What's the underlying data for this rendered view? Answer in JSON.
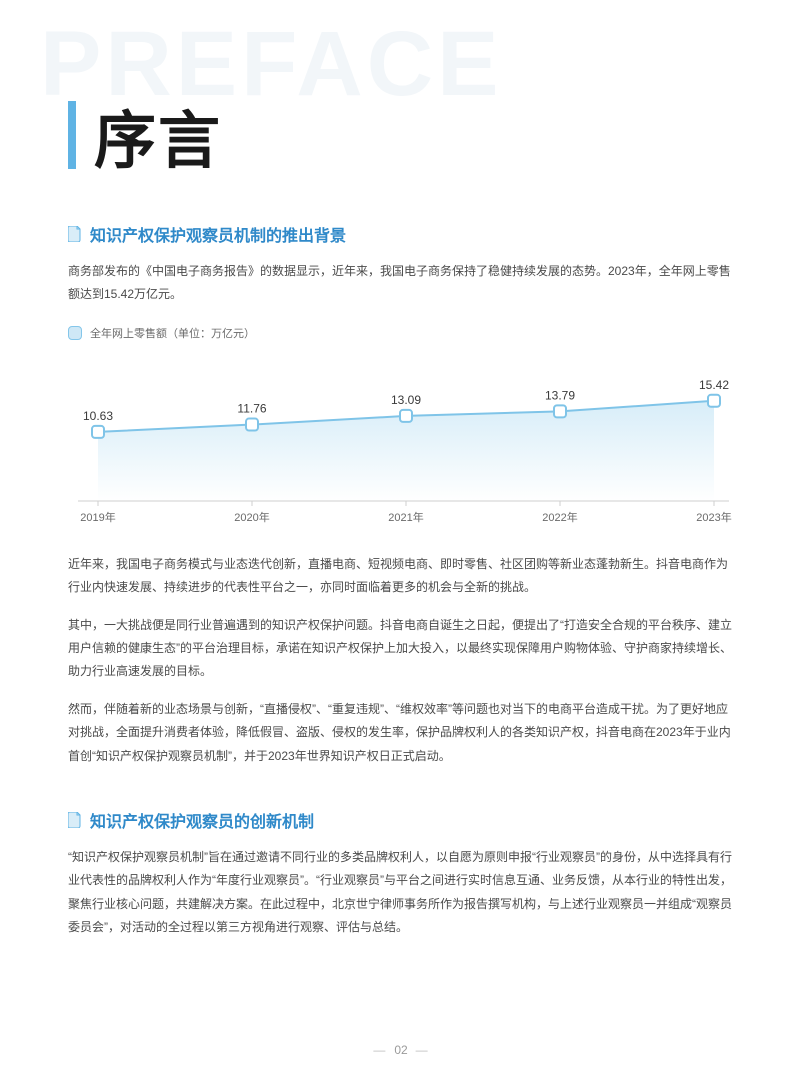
{
  "watermark": "PREFACE",
  "heading": "序言",
  "section1": {
    "title": "知识产权保护观察员机制的推出背景",
    "intro": "商务部发布的《中国电子商务报告》的数据显示，近年来，我国电子商务保持了稳健持续发展的态势。2023年，全年网上零售额达到15.42万亿元。",
    "legend": "全年网上零售额（单位：万亿元）",
    "chart": {
      "type": "area-line",
      "categories": [
        "2019年",
        "2020年",
        "2021年",
        "2022年",
        "2023年"
      ],
      "values": [
        10.63,
        11.76,
        13.09,
        13.79,
        15.42
      ],
      "value_labels": [
        "10.63",
        "11.76",
        "13.09",
        "13.79",
        "15.42"
      ],
      "line_color": "#7fc4e8",
      "area_top_color": "#d7edf8",
      "area_bottom_color": "#ffffff",
      "marker_fill": "#ffffff",
      "marker_stroke": "#7fc4e8",
      "marker_size": 6,
      "axis_color": "#cfcfcf",
      "label_color": "#3a3a3a",
      "cat_label_color": "#6a6a6a",
      "ylim": [
        0,
        20
      ],
      "label_fontsize": 12,
      "cat_fontsize": 11,
      "background_color": "#ffffff"
    },
    "p2": "近年来，我国电子商务模式与业态迭代创新，直播电商、短视频电商、即时零售、社区团购等新业态蓬勃新生。抖音电商作为行业内快速发展、持续进步的代表性平台之一，亦同时面临着更多的机会与全新的挑战。",
    "p3": "其中，一大挑战便是同行业普遍遇到的知识产权保护问题。抖音电商自诞生之日起，便提出了“打造安全合规的平台秩序、建立用户信赖的健康生态”的平台治理目标，承诺在知识产权保护上加大投入，以最终实现保障用户购物体验、守护商家持续增长、助力行业高速发展的目标。",
    "p4": "然而，伴随着新的业态场景与创新，“直播侵权”、“重复违规”、“维权效率”等问题也对当下的电商平台造成干扰。为了更好地应对挑战，全面提升消费者体验，降低假冒、盗版、侵权的发生率，保护品牌权利人的各类知识产权，抖音电商在2023年于业内首创“知识产权保护观察员机制”，并于2023年世界知识产权日正式启动。"
  },
  "section2": {
    "title": "知识产权保护观察员的创新机制",
    "p1": "“知识产权保护观察员机制”旨在通过邀请不同行业的多类品牌权利人，以自愿为原则申报“行业观察员”的身份，从中选择具有行业代表性的品牌权利人作为“年度行业观察员”。“行业观察员”与平台之间进行实时信息互通、业务反馈，从本行业的特性出发，聚焦行业核心问题，共建解决方案。在此过程中，北京世宁律师事务所作为报告撰写机构，与上述行业观察员一并组成“观察员委员会”，对活动的全过程以第三方视角进行观察、评估与总结。"
  },
  "page_number": "02",
  "colors": {
    "accent": "#5fb3e4",
    "title": "#2f89c9",
    "text": "#4a4a4a",
    "watermark": "#f2f6f9",
    "legend_bg": "#cfe8f6",
    "legend_border": "#84c6ea"
  }
}
